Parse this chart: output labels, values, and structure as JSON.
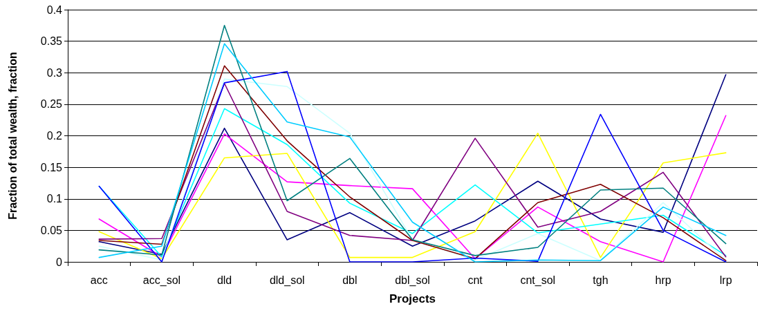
{
  "chart_data": {
    "type": "line",
    "xlabel": "Projects",
    "ylabel": "Fraction of total wealth, fraction",
    "categories": [
      "acc",
      "acc_sol",
      "dld",
      "dld_sol",
      "dbl",
      "dbl_sol",
      "cnt",
      "cnt_sol",
      "tgh",
      "hrp",
      "lrp"
    ],
    "ylim": [
      0,
      0.4
    ],
    "yticks": [
      0,
      0.05,
      0.1,
      0.15,
      0.2,
      0.25,
      0.3,
      0.35,
      0.4
    ],
    "grid": "y",
    "marker": "none",
    "line_style": "solid",
    "series": [
      {
        "color": "#000080",
        "values": [
          0.032,
          0.012,
          0.212,
          0.035,
          0.078,
          0.025,
          0.065,
          0.128,
          0.068,
          0.047,
          0.297
        ]
      },
      {
        "color": "#ff00ff",
        "values": [
          0.068,
          0.008,
          0.203,
          0.127,
          0.121,
          0.116,
          0.005,
          0.087,
          0.032,
          0.0,
          0.232
        ]
      },
      {
        "color": "#ffff00",
        "values": [
          0.048,
          0.005,
          0.165,
          0.172,
          0.007,
          0.007,
          0.048,
          0.204,
          0.007,
          0.157,
          0.173
        ]
      },
      {
        "color": "#00ffff",
        "values": [
          0.12,
          0.008,
          0.243,
          0.186,
          0.093,
          0.045,
          0.122,
          0.046,
          0.06,
          0.074,
          0.01
        ]
      },
      {
        "color": "#ccffff",
        "values": [
          0.025,
          0.003,
          0.29,
          0.278,
          0.204,
          0.035,
          0.003,
          0.045,
          0.002,
          0.094,
          0.002
        ]
      },
      {
        "color": "#800080",
        "values": [
          0.036,
          0.037,
          0.283,
          0.08,
          0.042,
          0.034,
          0.196,
          0.055,
          0.08,
          0.142,
          0.008
        ]
      },
      {
        "color": "#800000",
        "values": [
          0.034,
          0.028,
          0.311,
          0.192,
          0.103,
          0.034,
          0.005,
          0.094,
          0.123,
          0.07,
          0.002
        ]
      },
      {
        "color": "#008080",
        "values": [
          0.019,
          0.011,
          0.375,
          0.097,
          0.164,
          0.035,
          0.01,
          0.023,
          0.114,
          0.117,
          0.029
        ]
      },
      {
        "color": "#0000ff",
        "values": [
          0.12,
          0.0,
          0.284,
          0.302,
          0.0,
          0.0,
          0.006,
          0.001,
          0.234,
          0.05,
          0.0
        ]
      },
      {
        "color": "#00ccff",
        "values": [
          0.007,
          0.025,
          0.346,
          0.222,
          0.198,
          0.063,
          0.0,
          0.003,
          0.002,
          0.087,
          0.042
        ]
      }
    ]
  }
}
